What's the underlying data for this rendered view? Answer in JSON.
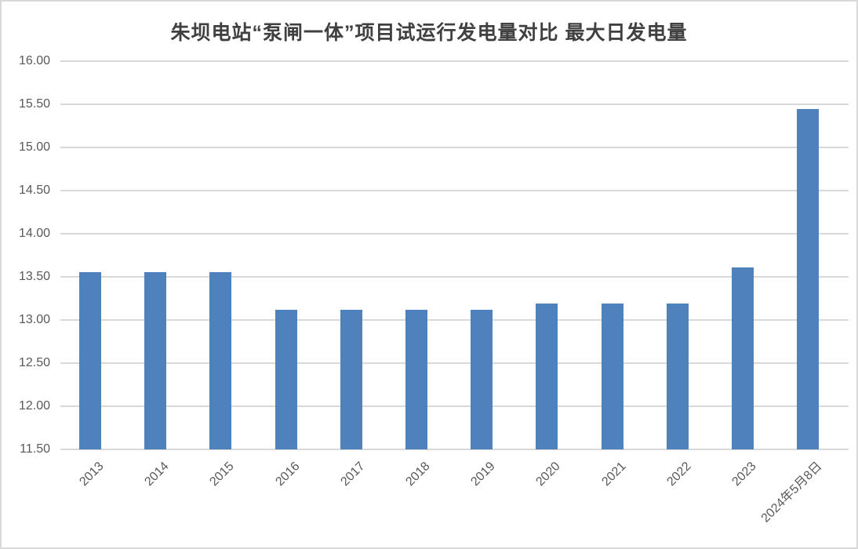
{
  "chart_data": {
    "type": "bar",
    "title": "朱坝电站“泵闸一体”项目试运行发电量对比 最大日发电量",
    "categories": [
      "2013",
      "2014",
      "2015",
      "2016",
      "2017",
      "2018",
      "2019",
      "2020",
      "2021",
      "2022",
      "2023",
      "2024年5月8日"
    ],
    "values": [
      13.55,
      13.55,
      13.55,
      13.12,
      13.12,
      13.12,
      13.12,
      13.19,
      13.19,
      13.19,
      13.61,
      15.45
    ],
    "xlabel": "",
    "ylabel": "",
    "ylim": [
      11.5,
      16.0
    ],
    "ytick_step": 0.5,
    "ytick_labels": [
      "16.00",
      "15.50",
      "15.00",
      "14.50",
      "14.00",
      "13.50",
      "13.00",
      "12.50",
      "12.00",
      "11.50"
    ],
    "grid": "horizontal",
    "legend": "none",
    "colors": {
      "bar": "#4f81bd",
      "gridline": "#d9d9d9",
      "tick_label": "#595959",
      "title": "#404040",
      "background": "#ffffff",
      "border": "#d9d9d9"
    }
  }
}
